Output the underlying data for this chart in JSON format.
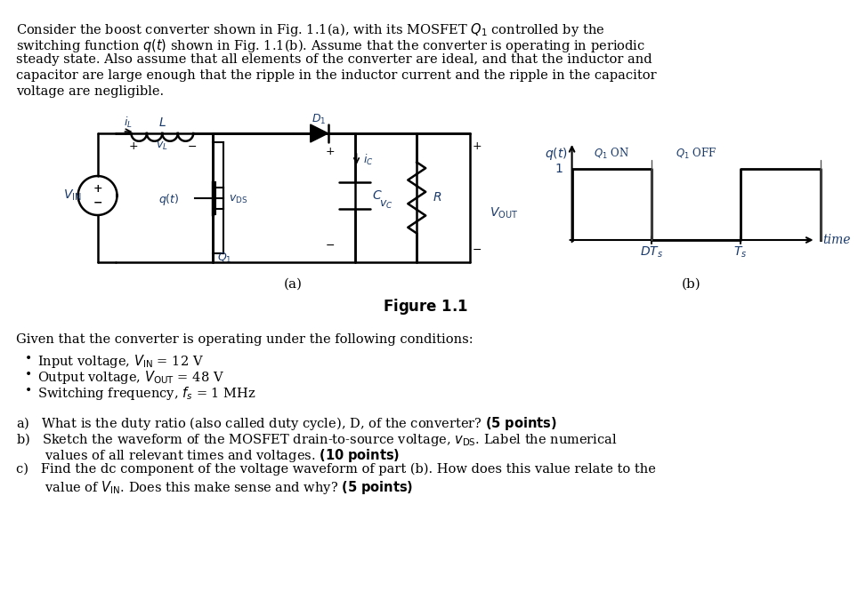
{
  "bg_color": "#ffffff",
  "text_color": "#000000",
  "blue_color": "#1a4480",
  "title_fontsize": 11,
  "body_fontsize": 11,
  "paragraph": "Consider the boost converter shown in Fig. 1.1(a), with its MOSFET Q₁ controlled by the\nswitching function q(t) shown in Fig. 1.1(b). Assume that the converter is operating in periodic\nsteady state. Also assume that all elements of the converter are ideal, and that the inductor and\ncapacitor are large enough that the ripple in the inductor current and the ripple in the capacitor\nvoltage are negligible.",
  "given_text": "Given that the converter is operating under the following conditions:",
  "bullet1": "Input voltage, Vᴵₙ = 12 V",
  "bullet2": "Output voltage, Vₒᵁᵀ = 48 V",
  "bullet3": "Switching frequency, fₛ = 1 MHz",
  "qa": "a) What is the duty ratio (also called duty cycle), D, of the converter? (5 points)",
  "qb1": "b) Sketch the waveform of the MOSFET drain-to-source voltage, vᴅₛ. Label the numerical",
  "qb2": "   values of all relevant times and voltages. (10 points)",
  "qc1": "c) Find the dc component of the voltage waveform of part (b). How does this value relate to the",
  "qc2": "   value of Vᴵₙ. Does this make sense and why? (5 points)",
  "fig_caption": "Figure 1.1",
  "fig_a_label": "(a)",
  "fig_b_label": "(b)"
}
